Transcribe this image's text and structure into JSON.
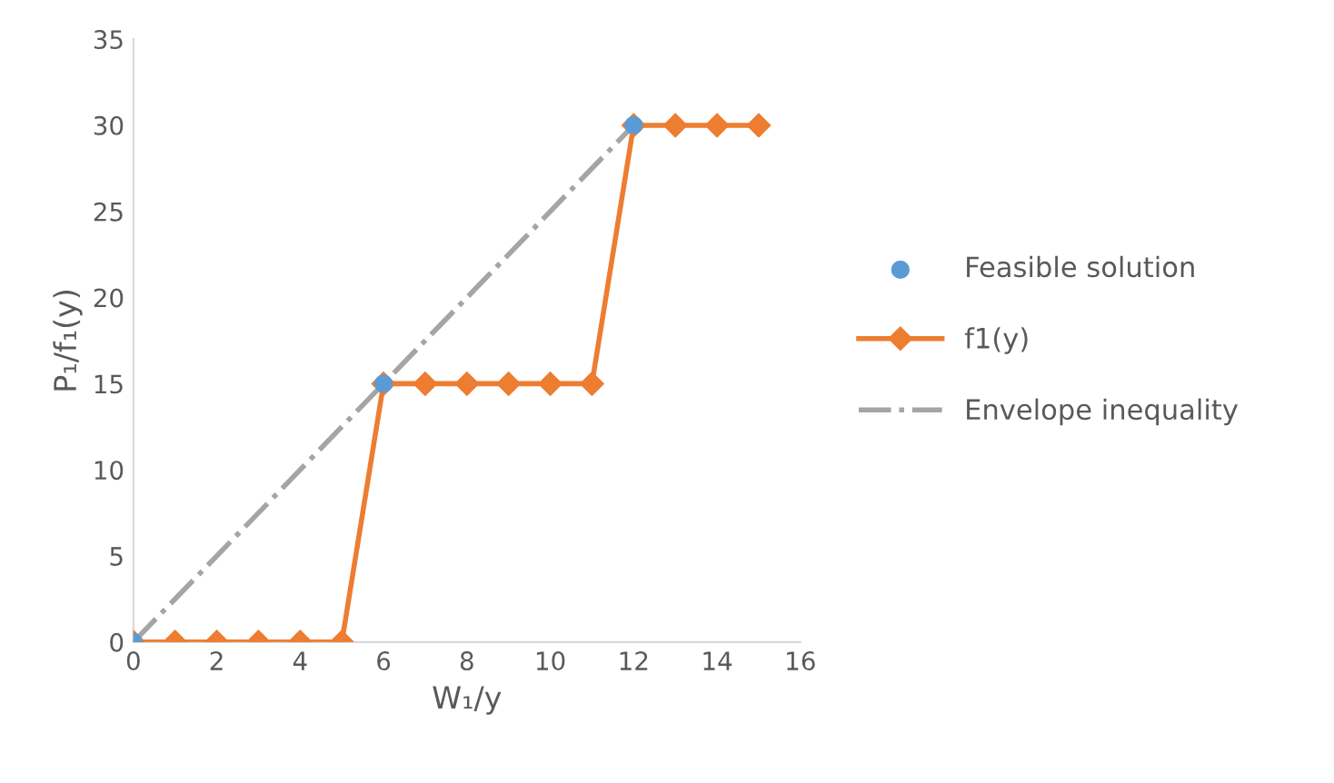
{
  "chart_data": {
    "type": "line",
    "xlabel": "W₁/y",
    "ylabel": "P₁/f₁(y)",
    "xlim": [
      0,
      16
    ],
    "xticks": [
      0,
      2,
      4,
      6,
      8,
      10,
      12,
      14,
      16
    ],
    "ylim": [
      0,
      35
    ],
    "yticks": [
      0,
      5,
      10,
      15,
      20,
      25,
      30,
      35
    ],
    "grid": false,
    "legend": "right",
    "series": [
      {
        "name": "Feasible solution",
        "type": "scatter",
        "color": "#5b9bd5",
        "marker": "circle",
        "x": [
          0,
          6,
          12
        ],
        "values": [
          0,
          15,
          30
        ]
      },
      {
        "name": "f1(y)",
        "color": "#ed7d31",
        "marker": "diamond",
        "line_style": "solid",
        "x": [
          0,
          1,
          2,
          3,
          4,
          5,
          6,
          7,
          8,
          9,
          10,
          11,
          12,
          13,
          14,
          15
        ],
        "values": [
          0,
          0,
          0,
          0,
          0,
          0,
          15,
          15,
          15,
          15,
          15,
          15,
          30,
          30,
          30,
          30
        ]
      },
      {
        "name": "Envelope inequality",
        "color": "#a5a5a5",
        "marker": "none",
        "line_style": "dashdot",
        "x": [
          0,
          12
        ],
        "values": [
          0,
          30
        ]
      }
    ]
  }
}
